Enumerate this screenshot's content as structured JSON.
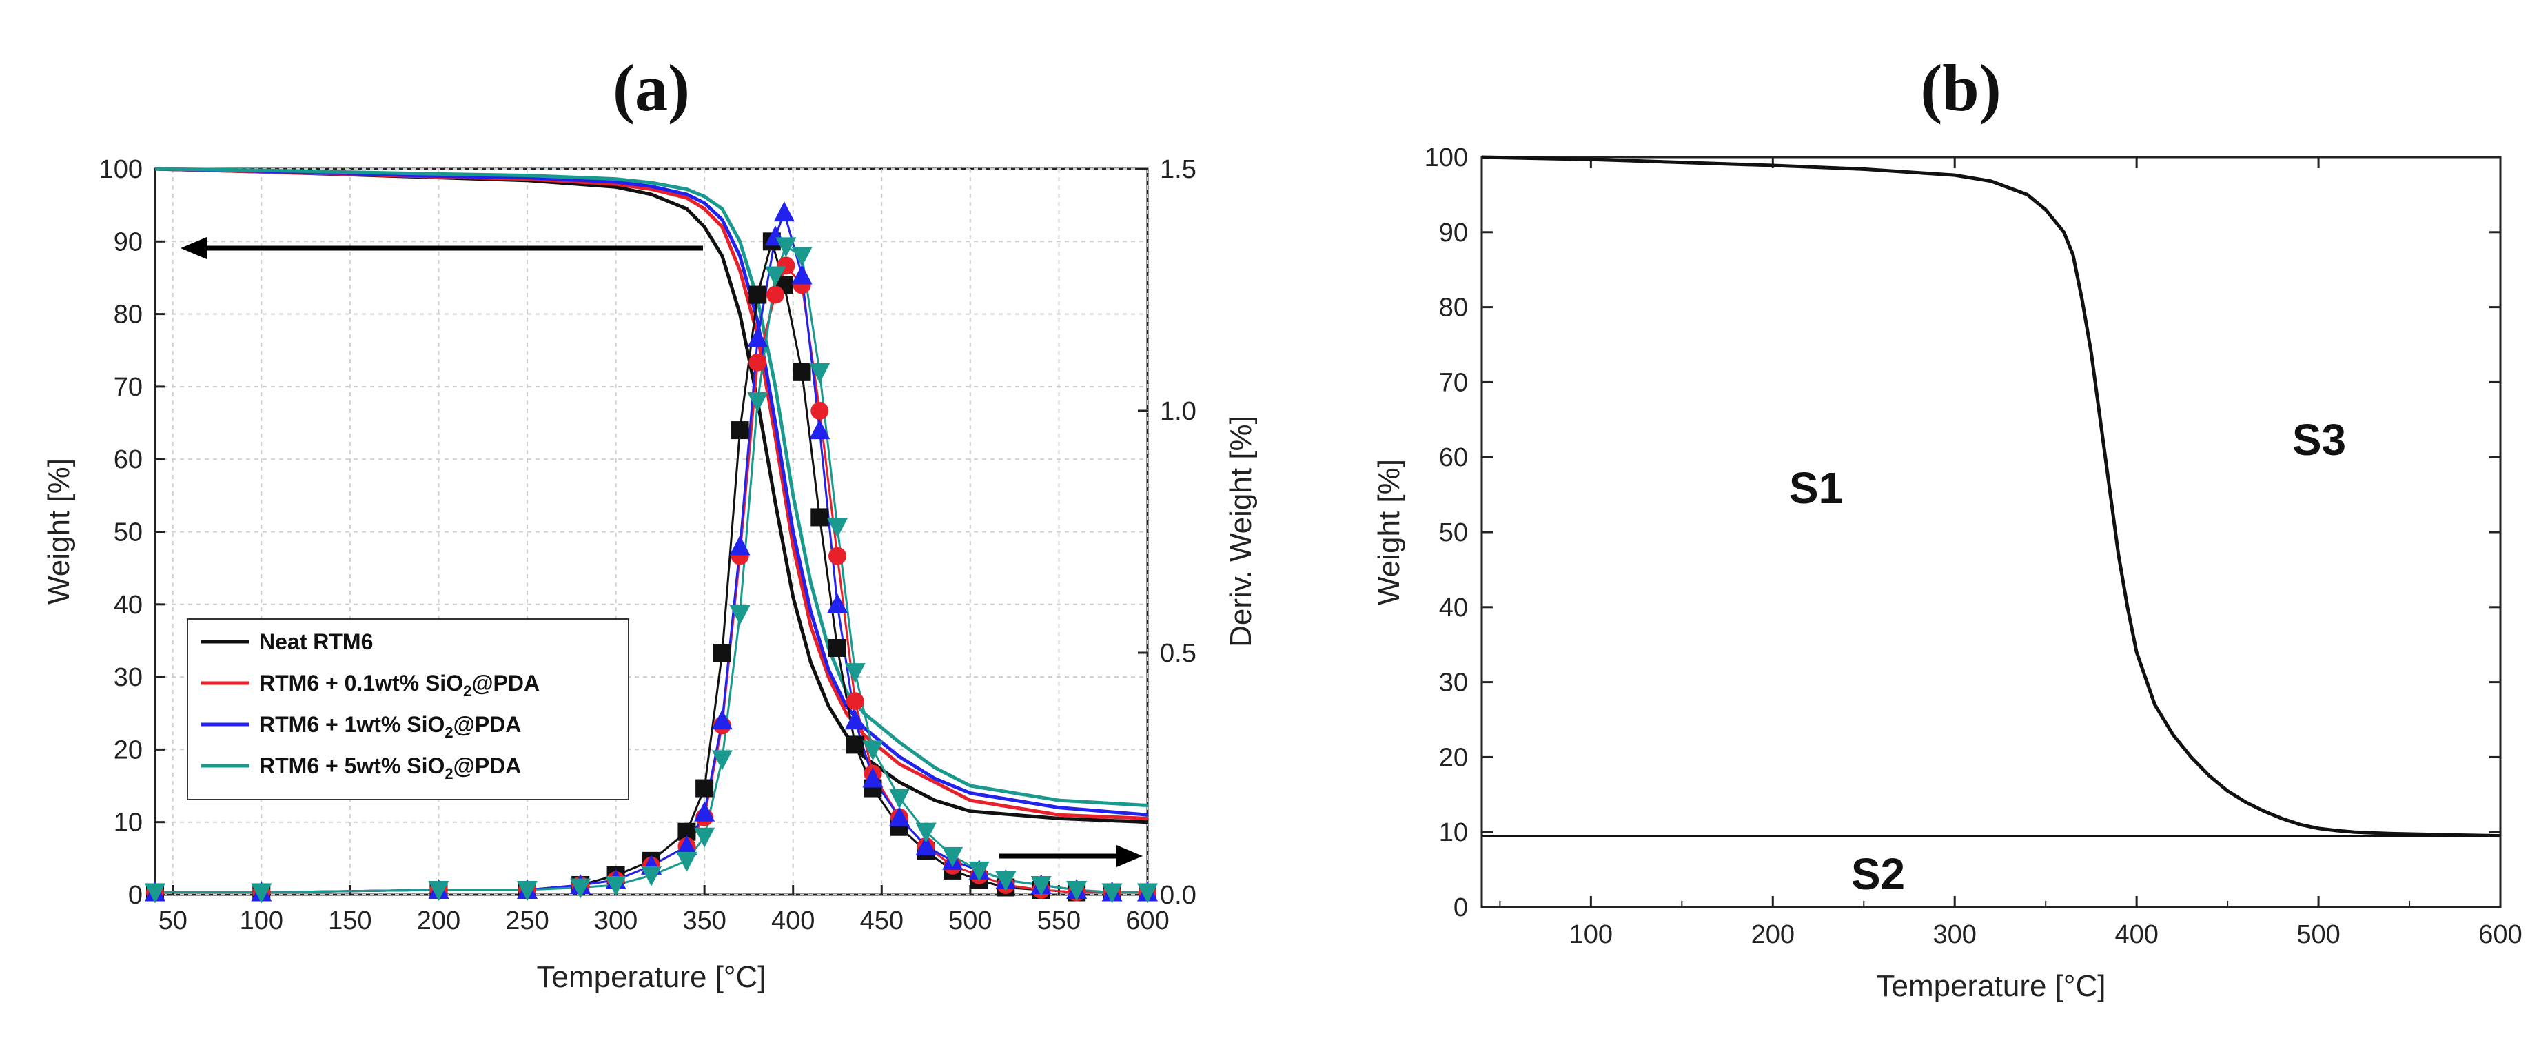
{
  "chart_data": [
    {
      "panel": "(a)",
      "type": "line",
      "xlabel": "Temperature [°C]",
      "ylabel": "Weight [%]",
      "y2label": "Deriv. Weight [%]",
      "xlim": [
        40,
        600
      ],
      "ylim": [
        0,
        100
      ],
      "y2lim": [
        0,
        1.5
      ],
      "xticks": [
        "50",
        "100",
        "150",
        "200",
        "250",
        "300",
        "350",
        "400",
        "450",
        "500",
        "550",
        "600"
      ],
      "yticks": [
        "0",
        "10",
        "20",
        "30",
        "40",
        "50",
        "60",
        "70",
        "80",
        "90",
        "100"
      ],
      "y2ticks": [
        "0.0",
        "0.5",
        "1.0",
        "1.5"
      ],
      "grid": true,
      "legend_position": "bottom-left",
      "legend": [
        {
          "name": "Neat RTM6",
          "color": "#111111"
        },
        {
          "name": "RTM6 + 0.1wt% SiO",
          "sub": "2",
          "suffix": "@PDA",
          "color": "#e8202a"
        },
        {
          "name": "RTM6 + 1wt% SiO",
          "sub": "2",
          "suffix": "@PDA",
          "color": "#2222ee"
        },
        {
          "name": "RTM6 + 5wt% SiO",
          "sub": "2",
          "suffix": "@PDA",
          "color": "#1a9a8e"
        }
      ],
      "annotations": [
        {
          "type": "arrow",
          "direction": "left",
          "meaning": "weight axis"
        },
        {
          "type": "arrow",
          "direction": "right",
          "meaning": "derivative axis"
        }
      ],
      "weight_series": [
        {
          "name": "Neat RTM6",
          "color": "#111111",
          "x": [
            40,
            100,
            200,
            250,
            300,
            320,
            340,
            350,
            360,
            370,
            380,
            390,
            400,
            410,
            420,
            430,
            440,
            460,
            480,
            500,
            550,
            600
          ],
          "y": [
            100,
            99.6,
            98.8,
            98.4,
            97.5,
            96.5,
            94.5,
            92,
            88,
            80,
            68,
            54,
            41,
            32,
            26,
            22,
            19,
            15.5,
            13,
            11.5,
            10.5,
            10
          ]
        },
        {
          "name": "RTM6 + 0.1wt% SiO2@PDA",
          "color": "#e8202a",
          "x": [
            40,
            100,
            200,
            250,
            300,
            320,
            340,
            350,
            360,
            370,
            380,
            390,
            400,
            410,
            420,
            430,
            440,
            460,
            480,
            500,
            550,
            600
          ],
          "y": [
            100,
            99.6,
            98.9,
            98.6,
            97.9,
            97.2,
            96,
            94.5,
            92,
            86,
            77,
            63,
            48,
            37,
            30,
            25,
            22,
            18,
            15.5,
            13,
            11,
            10.5
          ]
        },
        {
          "name": "RTM6 + 1wt% SiO2@PDA",
          "color": "#2222ee",
          "x": [
            40,
            100,
            200,
            250,
            300,
            320,
            340,
            350,
            360,
            370,
            380,
            390,
            400,
            410,
            420,
            430,
            440,
            460,
            480,
            500,
            550,
            600
          ],
          "y": [
            100,
            99.7,
            99,
            98.8,
            98.2,
            97.6,
            96.5,
            95.3,
            93,
            88,
            79,
            65,
            50,
            39,
            31,
            26,
            23,
            19,
            16,
            14,
            12,
            11
          ]
        },
        {
          "name": "RTM6 + 5wt% SiO2@PDA",
          "color": "#1a9a8e",
          "x": [
            40,
            100,
            200,
            250,
            300,
            320,
            340,
            350,
            360,
            370,
            380,
            390,
            400,
            410,
            420,
            430,
            440,
            460,
            480,
            500,
            550,
            600
          ],
          "y": [
            100,
            99.8,
            99.3,
            99.1,
            98.6,
            98.1,
            97.2,
            96.2,
            94.5,
            90,
            82,
            70,
            55,
            43,
            34,
            28,
            25,
            21,
            17.5,
            15,
            13,
            12.3
          ]
        }
      ],
      "deriv_series": [
        {
          "name": "Neat RTM6",
          "color": "#111111",
          "marker": "square",
          "x": [
            40,
            100,
            200,
            250,
            280,
            300,
            320,
            340,
            350,
            360,
            370,
            380,
            388,
            395,
            405,
            415,
            425,
            435,
            445,
            460,
            475,
            490,
            505,
            520,
            540,
            560,
            580,
            600
          ],
          "y": [
            0.005,
            0.005,
            0.01,
            0.01,
            0.02,
            0.04,
            0.07,
            0.13,
            0.22,
            0.5,
            0.96,
            1.24,
            1.35,
            1.26,
            1.08,
            0.78,
            0.51,
            0.31,
            0.22,
            0.14,
            0.09,
            0.05,
            0.03,
            0.015,
            0.01,
            0.005,
            0.005,
            0.005
          ]
        },
        {
          "name": "RTM6 + 0.1wt% SiO2@PDA",
          "color": "#e8202a",
          "marker": "circle",
          "x": [
            40,
            100,
            200,
            250,
            280,
            300,
            320,
            340,
            350,
            360,
            370,
            380,
            390,
            396,
            405,
            415,
            425,
            435,
            445,
            460,
            475,
            490,
            505,
            520,
            540,
            560,
            580,
            600
          ],
          "y": [
            0.005,
            0.005,
            0.01,
            0.01,
            0.02,
            0.03,
            0.06,
            0.1,
            0.16,
            0.35,
            0.7,
            1.1,
            1.24,
            1.3,
            1.26,
            1.0,
            0.7,
            0.4,
            0.25,
            0.16,
            0.1,
            0.06,
            0.04,
            0.02,
            0.01,
            0.005,
            0.005,
            0.005
          ]
        },
        {
          "name": "RTM6 + 1wt% SiO2@PDA",
          "color": "#2222ee",
          "marker": "triangle-up",
          "x": [
            40,
            100,
            200,
            250,
            280,
            300,
            320,
            340,
            350,
            360,
            370,
            380,
            390,
            395,
            405,
            415,
            425,
            435,
            445,
            460,
            475,
            490,
            505,
            520,
            540,
            560,
            580,
            600
          ],
          "y": [
            0.005,
            0.005,
            0.01,
            0.01,
            0.02,
            0.03,
            0.06,
            0.1,
            0.17,
            0.36,
            0.72,
            1.15,
            1.36,
            1.41,
            1.28,
            0.96,
            0.6,
            0.36,
            0.24,
            0.16,
            0.1,
            0.07,
            0.05,
            0.03,
            0.02,
            0.01,
            0.005,
            0.005
          ]
        },
        {
          "name": "RTM6 + 5wt% SiO2@PDA",
          "color": "#1a9a8e",
          "marker": "triangle-down",
          "x": [
            40,
            100,
            200,
            250,
            280,
            300,
            320,
            340,
            350,
            360,
            370,
            380,
            390,
            396,
            405,
            415,
            425,
            435,
            445,
            460,
            475,
            490,
            505,
            520,
            540,
            560,
            580,
            600
          ],
          "y": [
            0.005,
            0.005,
            0.01,
            0.01,
            0.015,
            0.02,
            0.04,
            0.07,
            0.12,
            0.28,
            0.58,
            1.02,
            1.28,
            1.34,
            1.32,
            1.08,
            0.76,
            0.46,
            0.3,
            0.2,
            0.13,
            0.08,
            0.05,
            0.03,
            0.02,
            0.01,
            0.005,
            0.005
          ]
        }
      ]
    },
    {
      "panel": "(b)",
      "type": "line",
      "xlabel": "Temperature [°C]",
      "ylabel": "Weight [%]",
      "xlim": [
        40,
        600
      ],
      "ylim": [
        0,
        100
      ],
      "xticks": [
        "100",
        "200",
        "300",
        "400",
        "500",
        "600"
      ],
      "yticks": [
        "0",
        "10",
        "20",
        "30",
        "40",
        "50",
        "60",
        "70",
        "80",
        "90",
        "100"
      ],
      "grid": false,
      "regions": [
        "S1",
        "S2",
        "S3"
      ],
      "baseline_y": 9.5,
      "series": [
        {
          "name": "Weight",
          "color": "#111111",
          "x": [
            40,
            100,
            150,
            200,
            250,
            300,
            320,
            340,
            350,
            360,
            365,
            370,
            375,
            380,
            385,
            390,
            395,
            400,
            410,
            420,
            430,
            440,
            450,
            460,
            470,
            480,
            490,
            500,
            510,
            520,
            540,
            560,
            580,
            600
          ],
          "y": [
            100,
            99.7,
            99.3,
            98.9,
            98.4,
            97.6,
            96.8,
            95,
            93,
            90,
            87,
            81,
            74,
            65,
            56,
            47,
            40,
            34,
            27,
            23,
            20,
            17.5,
            15.5,
            14,
            12.8,
            11.8,
            11,
            10.5,
            10.2,
            10,
            9.8,
            9.7,
            9.6,
            9.5
          ]
        }
      ]
    }
  ]
}
